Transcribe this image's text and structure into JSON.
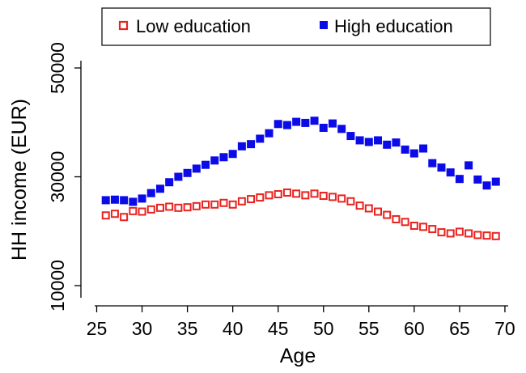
{
  "chart_data": {
    "type": "scatter",
    "xlabel": "Age",
    "ylabel": "HH income (EUR)",
    "xlim": [
      26,
      69
    ],
    "ylim": [
      8000,
      52000
    ],
    "xticks": [
      25,
      30,
      35,
      40,
      45,
      50,
      55,
      60,
      65,
      70
    ],
    "yticks": [
      10000,
      30000,
      50000
    ],
    "grid": false,
    "legend_position": "top",
    "x": [
      26,
      27,
      28,
      29,
      30,
      31,
      32,
      33,
      34,
      35,
      36,
      37,
      38,
      39,
      40,
      41,
      42,
      43,
      44,
      45,
      46,
      47,
      48,
      49,
      50,
      51,
      52,
      53,
      54,
      55,
      56,
      57,
      58,
      59,
      60,
      61,
      62,
      63,
      64,
      65,
      66,
      67,
      68,
      69
    ],
    "series": [
      {
        "name": "Low education",
        "color": "#e8231f",
        "marker": "hollow-square",
        "values": [
          22900,
          23200,
          22600,
          23700,
          23600,
          24000,
          24300,
          24500,
          24300,
          24400,
          24600,
          24900,
          24900,
          25200,
          24900,
          25500,
          25900,
          26200,
          26600,
          26800,
          27100,
          26900,
          26600,
          26900,
          26500,
          26300,
          26000,
          25500,
          24700,
          24200,
          23600,
          23000,
          22200,
          21700,
          21000,
          20800,
          20400,
          19800,
          19600,
          19900,
          19600,
          19300,
          19200,
          19100
        ]
      },
      {
        "name": "High education",
        "color": "#0b0be8",
        "marker": "filled-square",
        "values": [
          25700,
          25800,
          25700,
          25400,
          26000,
          27000,
          27800,
          29000,
          30000,
          30700,
          31500,
          32200,
          33000,
          33600,
          34200,
          35600,
          36000,
          37000,
          38000,
          39700,
          39500,
          40100,
          39900,
          40300,
          39000,
          39800,
          38800,
          37500,
          36700,
          36400,
          36700,
          35900,
          36300,
          35000,
          34300,
          35200,
          32500,
          31700,
          30800,
          29600,
          32100,
          29500,
          28400,
          29100
        ]
      }
    ]
  }
}
